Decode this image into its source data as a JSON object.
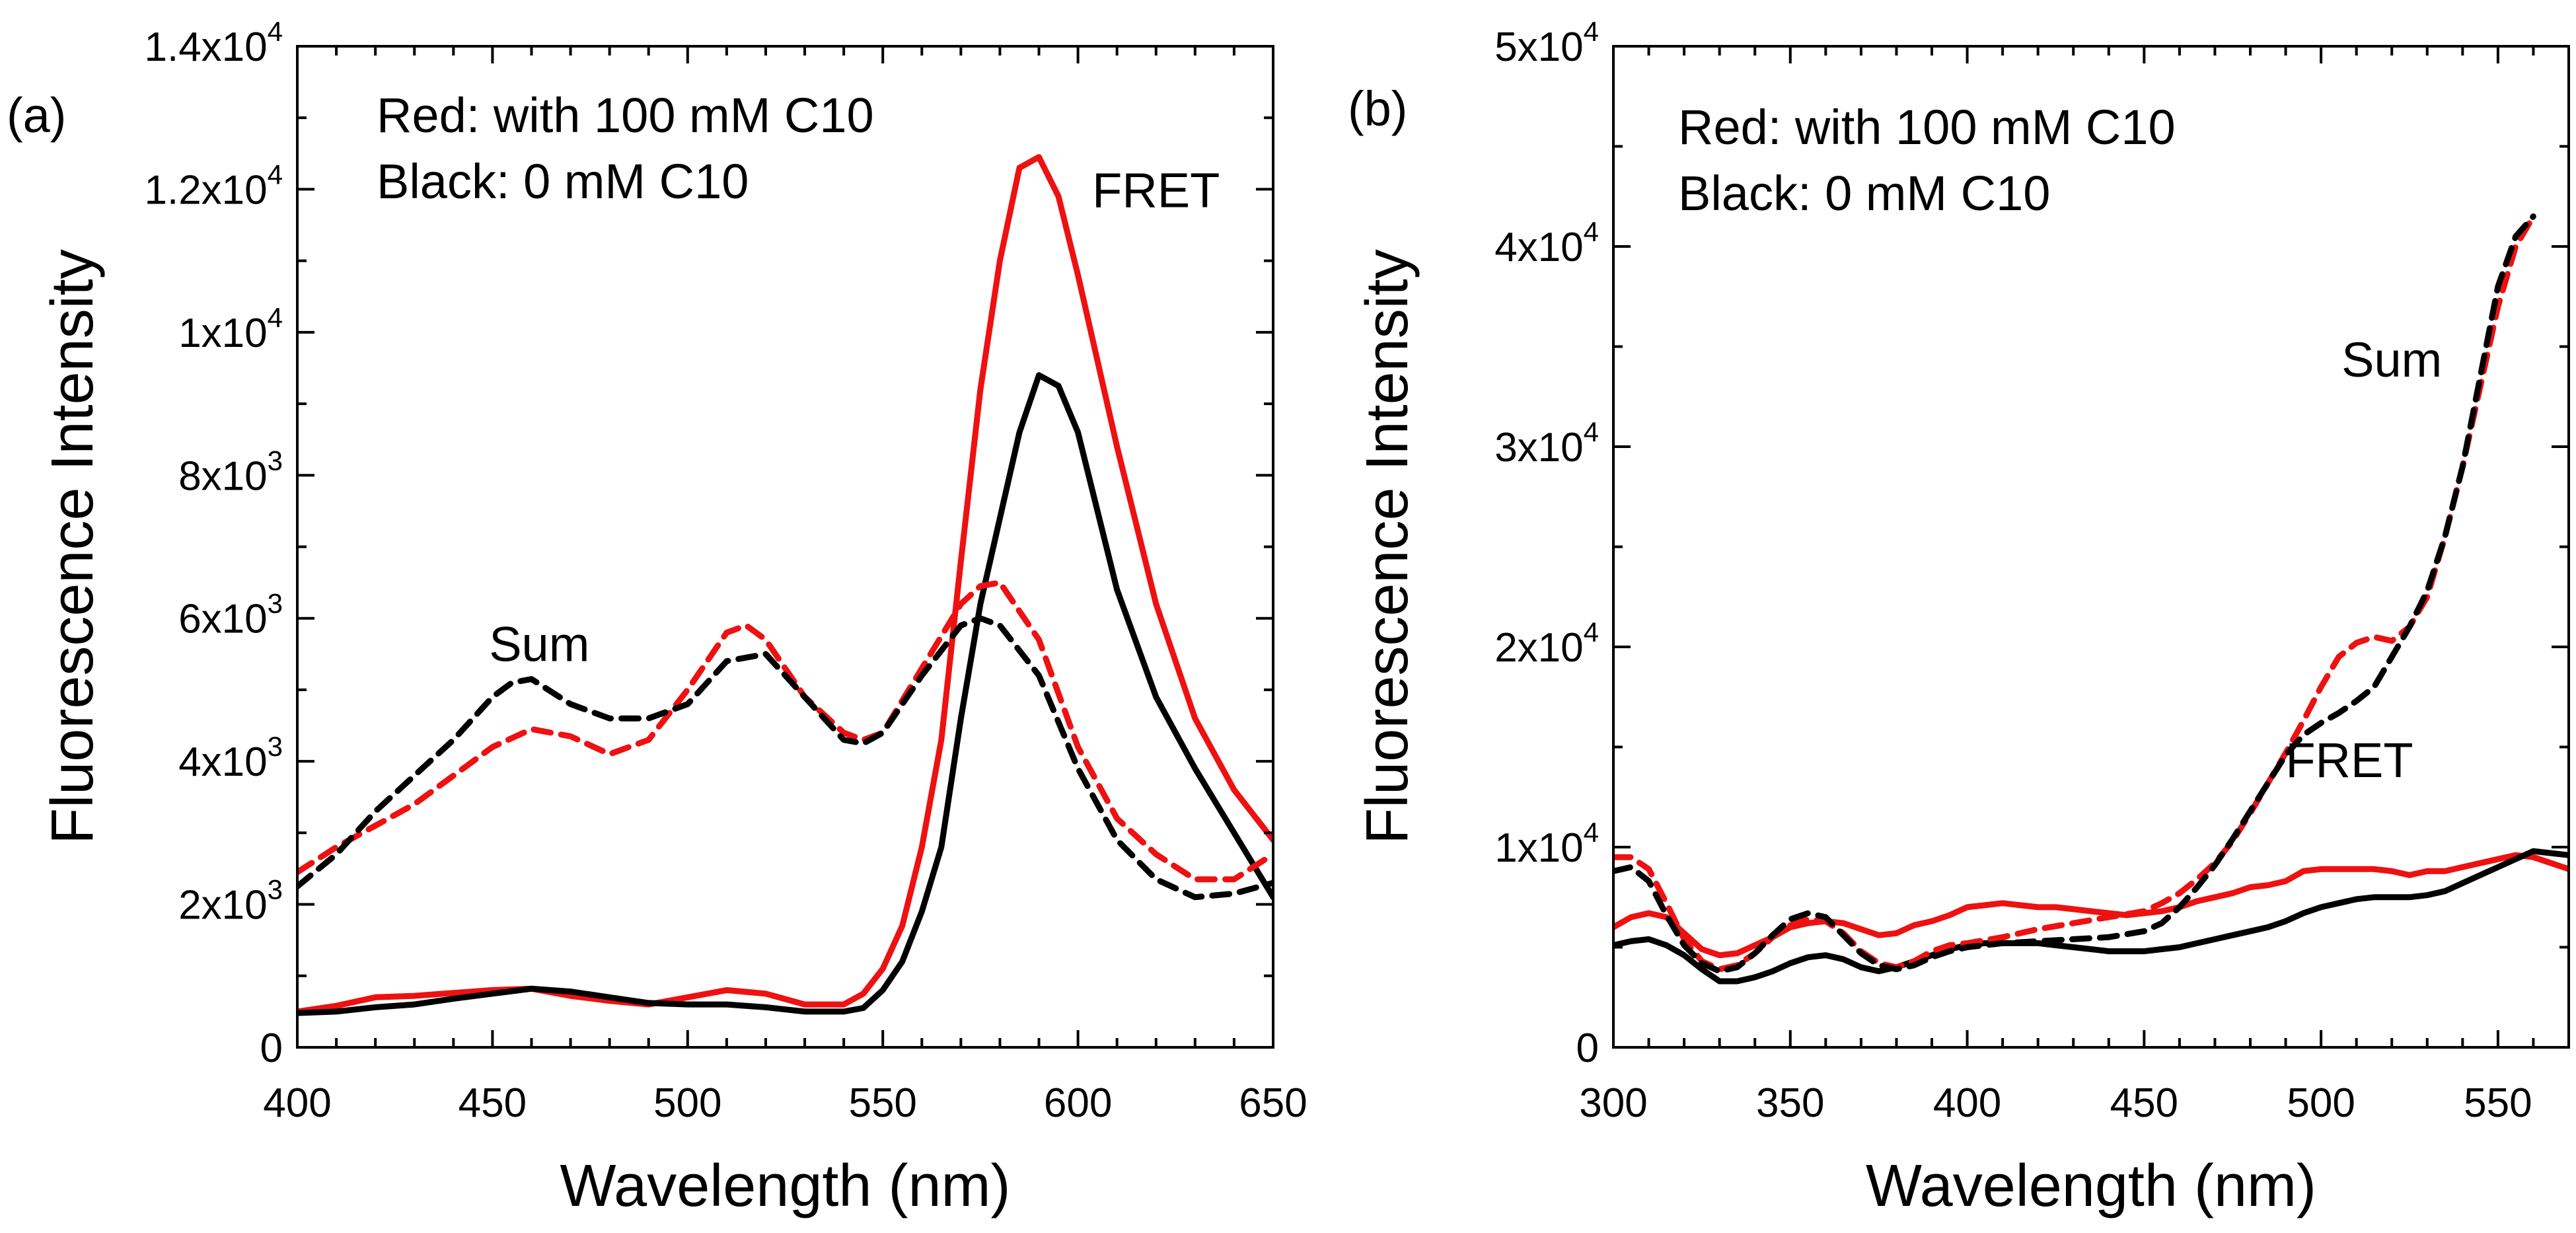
{
  "chart_data": [
    {
      "type": "line",
      "panel_label": "(a)",
      "xlabel": "Wavelength (nm)",
      "ylabel": "Fluorescence Intensity",
      "xlim": [
        400,
        650
      ],
      "ylim": [
        0,
        14000
      ],
      "xticks": [
        400,
        450,
        500,
        550,
        600,
        650
      ],
      "yticks": [
        {
          "value": 0,
          "mant": "0",
          "exp": ""
        },
        {
          "value": 2000,
          "mant": "2x10",
          "exp": "3"
        },
        {
          "value": 4000,
          "mant": "4x10",
          "exp": "3"
        },
        {
          "value": 6000,
          "mant": "6x10",
          "exp": "3"
        },
        {
          "value": 8000,
          "mant": "8x10",
          "exp": "3"
        },
        {
          "value": 10000,
          "mant": "1x10",
          "exp": "4"
        },
        {
          "value": 12000,
          "mant": "1.2x10",
          "exp": "4"
        },
        {
          "value": 14000,
          "mant": "1.4x10",
          "exp": "4"
        }
      ],
      "legend": [
        "Red: with 100 mM C10",
        "Black: 0 mM C10"
      ],
      "annotations": [
        {
          "text": "Sum",
          "x": 462,
          "y": 5400
        },
        {
          "text": "FRET",
          "x": 620,
          "y": 11750
        }
      ],
      "series": [
        {
          "name": "FRET, 100 mM C10",
          "color": "#ee1111",
          "dash": "solid",
          "x": [
            400,
            410,
            420,
            430,
            440,
            450,
            460,
            470,
            480,
            490,
            500,
            510,
            520,
            530,
            540,
            545,
            550,
            555,
            560,
            565,
            570,
            575,
            580,
            585,
            590,
            595,
            600,
            610,
            620,
            630,
            640,
            650
          ],
          "y": [
            500,
            580,
            700,
            720,
            760,
            800,
            820,
            720,
            650,
            600,
            700,
            800,
            750,
            600,
            600,
            750,
            1100,
            1700,
            2800,
            4300,
            6800,
            9200,
            11000,
            12300,
            12450,
            11900,
            10800,
            8400,
            6200,
            4600,
            3600,
            2900
          ]
        },
        {
          "name": "FRET, 0 mM C10",
          "color": "#000000",
          "dash": "solid",
          "x": [
            400,
            410,
            420,
            430,
            440,
            450,
            460,
            470,
            480,
            490,
            500,
            510,
            520,
            530,
            540,
            545,
            550,
            555,
            560,
            565,
            570,
            575,
            580,
            585,
            590,
            595,
            600,
            610,
            620,
            630,
            640,
            650
          ],
          "y": [
            480,
            500,
            560,
            600,
            680,
            750,
            820,
            780,
            700,
            620,
            600,
            600,
            560,
            500,
            500,
            550,
            800,
            1200,
            1900,
            2800,
            4600,
            6200,
            7400,
            8600,
            9400,
            9250,
            8600,
            6400,
            4900,
            3900,
            3000,
            2100
          ]
        },
        {
          "name": "Sum, 100 mM C10",
          "color": "#ee1111",
          "dash": "dashed",
          "x": [
            400,
            410,
            420,
            430,
            440,
            450,
            460,
            470,
            480,
            490,
            500,
            510,
            515,
            520,
            530,
            540,
            545,
            550,
            560,
            570,
            575,
            580,
            590,
            600,
            610,
            620,
            630,
            640,
            650
          ],
          "y": [
            2450,
            2800,
            3100,
            3400,
            3800,
            4200,
            4450,
            4350,
            4100,
            4300,
            5000,
            5800,
            5900,
            5700,
            4900,
            4400,
            4300,
            4400,
            5300,
            6200,
            6450,
            6500,
            5700,
            4200,
            3200,
            2700,
            2350,
            2350,
            2700
          ]
        },
        {
          "name": "Sum, 0 mM C10",
          "color": "#000000",
          "dash": "dashed",
          "x": [
            400,
            410,
            420,
            430,
            440,
            450,
            455,
            460,
            470,
            480,
            490,
            500,
            510,
            520,
            530,
            540,
            545,
            550,
            560,
            570,
            575,
            580,
            590,
            600,
            610,
            620,
            630,
            640,
            650
          ],
          "y": [
            2250,
            2700,
            3300,
            3800,
            4300,
            4900,
            5100,
            5150,
            4800,
            4600,
            4600,
            4800,
            5400,
            5500,
            4900,
            4300,
            4250,
            4400,
            5200,
            5900,
            6000,
            5900,
            5200,
            3900,
            2900,
            2350,
            2100,
            2150,
            2300
          ]
        }
      ]
    },
    {
      "type": "line",
      "panel_label": "(b)",
      "xlabel": "Wavelength (nm)",
      "ylabel": "Fluorescence Intensity",
      "xlim": [
        300,
        570
      ],
      "ylim": [
        0,
        50000
      ],
      "xticks": [
        300,
        350,
        400,
        450,
        500,
        550
      ],
      "yticks": [
        {
          "value": 0,
          "mant": "0",
          "exp": ""
        },
        {
          "value": 10000,
          "mant": "1x10",
          "exp": "4"
        },
        {
          "value": 20000,
          "mant": "2x10",
          "exp": "4"
        },
        {
          "value": 30000,
          "mant": "3x10",
          "exp": "4"
        },
        {
          "value": 40000,
          "mant": "4x10",
          "exp": "4"
        },
        {
          "value": 50000,
          "mant": "5x10",
          "exp": "4"
        }
      ],
      "legend": [
        "Red: with 100 mM C10",
        "Black: 0 mM C10"
      ],
      "annotations": [
        {
          "text": "Sum",
          "x": 520,
          "y": 33500
        },
        {
          "text": "FRET",
          "x": 508,
          "y": 13500
        }
      ],
      "series": [
        {
          "name": "FRET, 100 mM C10",
          "color": "#ee1111",
          "dash": "solid",
          "x": [
            300,
            305,
            310,
            315,
            320,
            325,
            330,
            335,
            340,
            345,
            350,
            355,
            360,
            365,
            370,
            375,
            380,
            385,
            390,
            395,
            400,
            405,
            410,
            415,
            420,
            425,
            430,
            435,
            440,
            445,
            450,
            455,
            460,
            465,
            470,
            475,
            480,
            485,
            490,
            495,
            500,
            505,
            510,
            515,
            520,
            525,
            530,
            535,
            540,
            545,
            550,
            555,
            560,
            565,
            570
          ],
          "y": [
            6000,
            6500,
            6700,
            6500,
            5700,
            4900,
            4600,
            4700,
            5100,
            5500,
            6000,
            6200,
            6300,
            6200,
            5900,
            5600,
            5700,
            6100,
            6300,
            6600,
            7000,
            7100,
            7200,
            7100,
            7000,
            7000,
            6900,
            6800,
            6700,
            6600,
            6700,
            6800,
            7000,
            7300,
            7500,
            7700,
            8000,
            8100,
            8300,
            8800,
            8900,
            8900,
            8900,
            8900,
            8800,
            8600,
            8800,
            8800,
            9000,
            9200,
            9400,
            9600,
            9500,
            9200,
            8900
          ]
        },
        {
          "name": "FRET, 0 mM C10",
          "color": "#000000",
          "dash": "solid",
          "x": [
            300,
            305,
            310,
            315,
            320,
            325,
            330,
            335,
            340,
            345,
            350,
            355,
            360,
            365,
            370,
            375,
            380,
            385,
            390,
            395,
            400,
            405,
            410,
            415,
            420,
            425,
            430,
            435,
            440,
            445,
            450,
            455,
            460,
            465,
            470,
            475,
            480,
            485,
            490,
            495,
            500,
            505,
            510,
            515,
            520,
            525,
            530,
            535,
            540,
            545,
            550,
            555,
            560,
            565,
            570
          ],
          "y": [
            5100,
            5300,
            5400,
            5100,
            4600,
            3900,
            3300,
            3300,
            3500,
            3800,
            4200,
            4500,
            4600,
            4400,
            4000,
            3800,
            4000,
            4300,
            4600,
            4900,
            5100,
            5200,
            5200,
            5200,
            5200,
            5100,
            5000,
            4900,
            4800,
            4800,
            4800,
            4900,
            5000,
            5200,
            5400,
            5600,
            5800,
            6000,
            6300,
            6700,
            7000,
            7200,
            7400,
            7500,
            7500,
            7500,
            7600,
            7800,
            8200,
            8600,
            9000,
            9400,
            9800,
            9700,
            9600
          ]
        },
        {
          "name": "Sum, 100 mM C10",
          "color": "#ee1111",
          "dash": "dashed",
          "x": [
            300,
            305,
            310,
            315,
            320,
            325,
            330,
            335,
            340,
            345,
            350,
            355,
            360,
            365,
            370,
            375,
            380,
            385,
            390,
            395,
            400,
            410,
            420,
            430,
            440,
            450,
            455,
            460,
            465,
            470,
            475,
            480,
            485,
            490,
            495,
            500,
            505,
            510,
            515,
            520,
            525,
            530,
            535,
            540,
            545,
            550,
            555,
            560
          ],
          "y": [
            9500,
            9500,
            8900,
            7200,
            5400,
            4300,
            3900,
            4100,
            4700,
            5500,
            6100,
            6400,
            6300,
            5700,
            4800,
            4200,
            4000,
            4300,
            4800,
            5100,
            5200,
            5500,
            5900,
            6200,
            6500,
            6800,
            7200,
            7700,
            8400,
            9200,
            10300,
            11700,
            13200,
            14700,
            16300,
            18000,
            19500,
            20200,
            20500,
            20300,
            21000,
            22500,
            25500,
            29000,
            33000,
            37000,
            40000,
            41500
          ]
        },
        {
          "name": "Sum, 0 mM C10",
          "color": "#000000",
          "dash": "dashed",
          "x": [
            300,
            305,
            310,
            315,
            320,
            325,
            330,
            335,
            340,
            345,
            350,
            355,
            360,
            365,
            370,
            375,
            380,
            385,
            390,
            395,
            400,
            410,
            420,
            430,
            440,
            450,
            455,
            460,
            465,
            470,
            475,
            480,
            485,
            490,
            495,
            500,
            505,
            510,
            515,
            520,
            525,
            530,
            535,
            540,
            545,
            550,
            555,
            560
          ],
          "y": [
            8800,
            9000,
            8300,
            6600,
            5100,
            4200,
            3800,
            4000,
            4700,
            5600,
            6400,
            6700,
            6500,
            5600,
            4700,
            4100,
            3900,
            4100,
            4500,
            4800,
            5000,
            5200,
            5300,
            5400,
            5500,
            5800,
            6200,
            7000,
            8000,
            9100,
            10400,
            11800,
            13200,
            14600,
            15600,
            16200,
            16700,
            17300,
            18000,
            19500,
            21000,
            22800,
            25500,
            29000,
            33500,
            38000,
            40500,
            41500
          ]
        }
      ]
    }
  ]
}
